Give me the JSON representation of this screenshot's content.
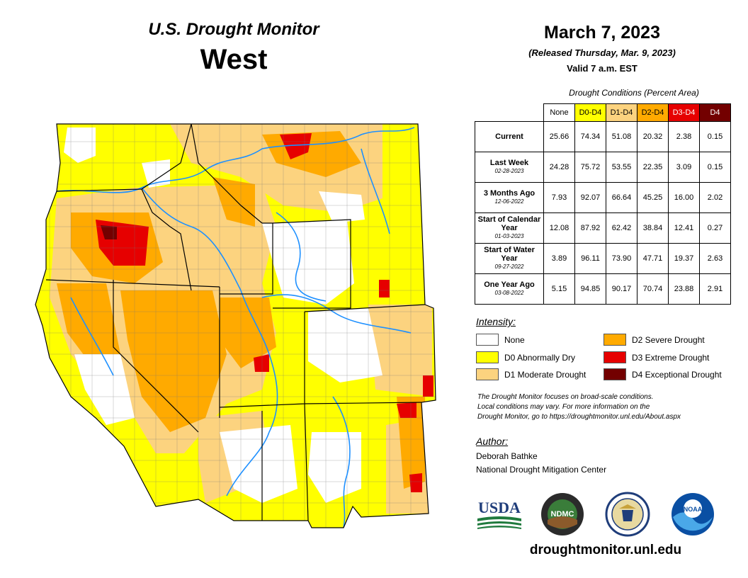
{
  "header": {
    "subtitle": "U.S. Drought Monitor",
    "region": "West"
  },
  "dates": {
    "main": "March 7, 2023",
    "released": "(Released Thursday, Mar. 9, 2023)",
    "valid": "Valid 7 a.m. EST"
  },
  "table": {
    "caption": "Drought Conditions (Percent Area)",
    "columns": [
      "None",
      "D0-D4",
      "D1-D4",
      "D2-D4",
      "D3-D4",
      "D4"
    ],
    "rows": [
      {
        "label": "Current",
        "date": "",
        "values": [
          "25.66",
          "74.34",
          "51.08",
          "20.32",
          "2.38",
          "0.15"
        ]
      },
      {
        "label": "Last Week",
        "date": "02-28-2023",
        "values": [
          "24.28",
          "75.72",
          "53.55",
          "22.35",
          "3.09",
          "0.15"
        ]
      },
      {
        "label": "3 Months Ago",
        "date": "12-06-2022",
        "values": [
          "7.93",
          "92.07",
          "66.64",
          "45.25",
          "16.00",
          "2.02"
        ]
      },
      {
        "label": "Start of Calendar Year",
        "date": "01-03-2023",
        "values": [
          "12.08",
          "87.92",
          "62.42",
          "38.84",
          "12.41",
          "0.27"
        ]
      },
      {
        "label": "Start of Water Year",
        "date": "09-27-2022",
        "values": [
          "3.89",
          "96.11",
          "73.90",
          "47.71",
          "19.37",
          "2.63"
        ]
      },
      {
        "label": "One Year Ago",
        "date": "03-08-2022",
        "values": [
          "5.15",
          "94.85",
          "90.17",
          "70.74",
          "23.88",
          "2.91"
        ]
      }
    ]
  },
  "legend": {
    "title": "Intensity:",
    "items": [
      {
        "label": "None",
        "color": "#ffffff"
      },
      {
        "label": "D0 Abnormally Dry",
        "color": "#ffff00"
      },
      {
        "label": "D1 Moderate Drought",
        "color": "#fcd37f"
      },
      {
        "label": "D2 Severe Drought",
        "color": "#ffaa00"
      },
      {
        "label": "D3 Extreme Drought",
        "color": "#e60000"
      },
      {
        "label": "D4 Exceptional Drought",
        "color": "#730000"
      }
    ]
  },
  "note": {
    "line1": "The Drought Monitor focuses on broad-scale conditions.",
    "line2": "Local conditions may vary. For more information on the",
    "line3": "Drought Monitor, go to https://droughtmonitor.unl.edu/About.aspx"
  },
  "author": {
    "title": "Author:",
    "name": "Deborah Bathke",
    "org": "National Drought Mitigation Center"
  },
  "logos": {
    "usda": "USDA",
    "ndmc": "NDMC",
    "noaa": "NOAA"
  },
  "website": "droughtmonitor.unl.edu",
  "colors": {
    "none": "#ffffff",
    "d0": "#ffff00",
    "d1": "#fcd37f",
    "d2": "#ffaa00",
    "d3": "#e60000",
    "d4": "#730000",
    "river": "#1e90ff"
  }
}
